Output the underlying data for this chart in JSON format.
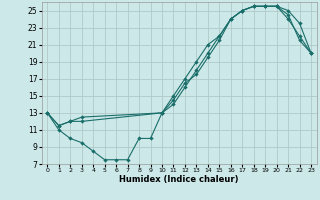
{
  "xlabel": "Humidex (Indice chaleur)",
  "bg_color": "#cce8e8",
  "grid_color": "#b0c8c8",
  "line_color": "#1a6e6a",
  "xlim": [
    -0.5,
    23.5
  ],
  "ylim": [
    7,
    26
  ],
  "xticks": [
    0,
    1,
    2,
    3,
    4,
    5,
    6,
    7,
    8,
    9,
    10,
    11,
    12,
    13,
    14,
    15,
    16,
    17,
    18,
    19,
    20,
    21,
    22,
    23
  ],
  "yticks": [
    7,
    9,
    11,
    13,
    15,
    17,
    19,
    21,
    23,
    25
  ],
  "line1_x": [
    0,
    1,
    2,
    3,
    4,
    5,
    6,
    7,
    8,
    9,
    10,
    11,
    12,
    13,
    14,
    15,
    16,
    17,
    18,
    19,
    20,
    21,
    22,
    23
  ],
  "line1_y": [
    13,
    11,
    10,
    9.5,
    8.5,
    7.5,
    7.5,
    7.5,
    10,
    10,
    13,
    15,
    17,
    19,
    21,
    22,
    24,
    25,
    25.5,
    25.5,
    25.5,
    24.5,
    21.5,
    20
  ],
  "line2_x": [
    0,
    1,
    2,
    3,
    10,
    11,
    12,
    13,
    14,
    15,
    16,
    17,
    18,
    19,
    20,
    21,
    22,
    23
  ],
  "line2_y": [
    13,
    11.5,
    12,
    12.5,
    13,
    14.5,
    16.5,
    17.5,
    19.5,
    21.5,
    24,
    25,
    25.5,
    25.5,
    25.5,
    24,
    22,
    20
  ],
  "line3_x": [
    0,
    1,
    2,
    3,
    10,
    11,
    12,
    13,
    14,
    15,
    16,
    17,
    18,
    19,
    20,
    21,
    22,
    23
  ],
  "line3_y": [
    13,
    11.5,
    12,
    12,
    13,
    14,
    16,
    18,
    20,
    22,
    24,
    25,
    25.5,
    25.5,
    25.5,
    25,
    23.5,
    20
  ]
}
